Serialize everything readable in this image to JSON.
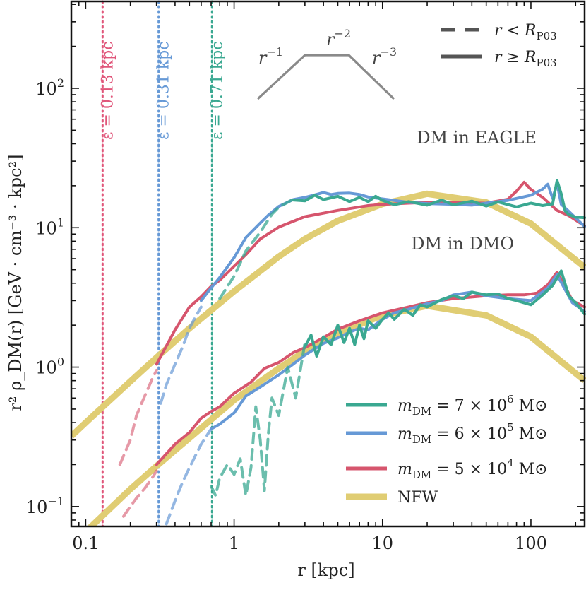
{
  "chart_data": {
    "type": "line",
    "title": "",
    "xlabel": "r [kpc]",
    "ylabel": "r² ρ_DM(r) [GeV · cm⁻³ · kpc²]",
    "xscale": "log",
    "yscale": "log",
    "xlim": [
      0.08,
      230
    ],
    "ylim": [
      0.072,
      420
    ],
    "x_ticks": [
      {
        "value": 0.1,
        "label": "0.1"
      },
      {
        "value": 1,
        "label": "1"
      },
      {
        "value": 10,
        "label": "10"
      },
      {
        "value": 100,
        "label": "100"
      }
    ],
    "y_ticks": [
      {
        "value": 0.1,
        "base": "10",
        "exp": "−1"
      },
      {
        "value": 1,
        "base": "10",
        "exp": "0"
      },
      {
        "value": 10,
        "base": "10",
        "exp": "1"
      },
      {
        "value": 100,
        "base": "10",
        "exp": "2"
      }
    ],
    "softening_lines": [
      {
        "label": "ε = 0.13 kpc",
        "x": 0.13,
        "color": "#e0567a"
      },
      {
        "label": "ε = 0.31 kpc",
        "x": 0.31,
        "color": "#6699d6"
      },
      {
        "label": "ε = 0.71 kpc",
        "x": 0.71,
        "color": "#3aa891"
      }
    ],
    "group_labels": [
      {
        "text": "DM in EAGLE",
        "position": "upper-right"
      },
      {
        "text": "DM in DMO",
        "position": "middle-right"
      }
    ],
    "slope_schematic": {
      "labels": [
        {
          "base": "r",
          "exp": "−1"
        },
        {
          "base": "r",
          "exp": "−2"
        },
        {
          "base": "r",
          "exp": "−3"
        }
      ],
      "color": "#8a8a8a"
    },
    "linestyle_legend": {
      "items": [
        {
          "label": "r < R_P03",
          "base": "r < R",
          "sub": "P03",
          "style": "dashed"
        },
        {
          "label": "r ≥ R_P03",
          "base": "r ≥ R",
          "sub": "P03",
          "style": "solid"
        }
      ],
      "color": "#555555"
    },
    "legend": [
      {
        "label": "m_DM = 7 × 10⁶ M⊙",
        "lhs": "m",
        "sub": "DM",
        "mant": " = 7 × 10",
        "exp": "6",
        "unit": " M⊙",
        "color": "#3aa891"
      },
      {
        "label": "m_DM = 6 × 10⁵ M⊙",
        "lhs": "m",
        "sub": "DM",
        "mant": " = 6 × 10",
        "exp": "5",
        "unit": " M⊙",
        "color": "#6699d6"
      },
      {
        "label": "m_DM = 5 × 10⁴ M⊙",
        "lhs": "m",
        "sub": "DM",
        "mant": " = 5 × 10",
        "exp": "4",
        "unit": " M⊙",
        "color": "#d6556d"
      },
      {
        "label": "NFW",
        "color": "#e0cd73"
      }
    ],
    "series": [
      {
        "name": "NFW (EAGLE)",
        "color": "#e0cd73",
        "style": "solid",
        "width": 9,
        "x": [
          0.08,
          0.1,
          0.2,
          0.3,
          0.5,
          1,
          2,
          3,
          5,
          10,
          20,
          50,
          100,
          230
        ],
        "y": [
          0.32,
          0.4,
          0.79,
          1.17,
          1.9,
          3.5,
          6.2,
          8.3,
          11.2,
          14.8,
          17.5,
          15.2,
          10.7,
          5.2
        ]
      },
      {
        "name": "NFW (DMO)",
        "color": "#e0cd73",
        "style": "solid",
        "width": 9,
        "x": [
          0.1,
          0.2,
          0.3,
          0.5,
          1,
          2,
          3,
          5,
          10,
          20,
          50,
          100,
          230
        ],
        "y": [
          0.066,
          0.133,
          0.195,
          0.31,
          0.58,
          0.98,
          1.3,
          1.75,
          2.35,
          2.75,
          2.35,
          1.65,
          0.8
        ]
      },
      {
        "name": "EAGLE m5e4 (r<R)",
        "color": "#d6556d",
        "style": "dashed",
        "opacity": 0.6,
        "x": [
          0.17,
          0.2,
          0.22,
          0.25,
          0.28,
          0.3
        ],
        "y": [
          0.2,
          0.3,
          0.45,
          0.62,
          0.82,
          0.95
        ]
      },
      {
        "name": "EAGLE m5e4",
        "color": "#d6556d",
        "style": "solid",
        "x": [
          0.3,
          0.4,
          0.5,
          0.6,
          0.7,
          0.8,
          1,
          1.2,
          1.5,
          2,
          3,
          5,
          8,
          10,
          15,
          20,
          30,
          50,
          70,
          80,
          90,
          100,
          120,
          150,
          180,
          230
        ],
        "y": [
          1.05,
          1.85,
          2.7,
          3.2,
          3.8,
          4.2,
          5.3,
          6.4,
          8.3,
          10.1,
          12.0,
          13.3,
          14.4,
          14.7,
          15.0,
          15.2,
          15.1,
          15.0,
          16.0,
          18.3,
          21.2,
          18.8,
          16.5,
          13.3,
          12.2,
          10.3
        ]
      },
      {
        "name": "EAGLE m6e5 (r<R)",
        "color": "#6699d6",
        "style": "dashed",
        "opacity": 0.7,
        "x": [
          0.32,
          0.35,
          0.4,
          0.45,
          0.5,
          0.55,
          0.6
        ],
        "y": [
          0.55,
          0.75,
          1.05,
          1.4,
          1.9,
          2.3,
          2.7
        ]
      },
      {
        "name": "EAGLE m6e5",
        "color": "#6699d6",
        "style": "solid",
        "x": [
          0.6,
          0.7,
          0.8,
          1,
          1.2,
          1.5,
          1.7,
          2,
          2.5,
          3,
          3.5,
          4,
          4.5,
          5,
          6,
          7,
          8,
          10,
          15,
          20,
          30,
          40,
          50,
          70,
          100,
          120,
          130,
          140,
          150,
          160,
          180,
          230
        ],
        "y": [
          3.0,
          3.7,
          4.4,
          6.1,
          8.5,
          10.8,
          12.3,
          14.2,
          15.9,
          16.5,
          17.2,
          17.9,
          17.3,
          17.6,
          17.7,
          17.3,
          16.6,
          16.1,
          15.2,
          14.9,
          14.7,
          14.5,
          15.0,
          15.7,
          17.1,
          18.9,
          20.5,
          16.2,
          20.8,
          14.7,
          13.1,
          10.2
        ]
      },
      {
        "name": "EAGLE m7e6 (r<R)",
        "color": "#3aa891",
        "style": "dashed",
        "opacity": 0.75,
        "x": [
          0.8,
          1,
          1.2,
          1.5,
          1.8,
          2,
          2.5
        ],
        "y": [
          3.1,
          4.5,
          6.8,
          9.3,
          12.5,
          14.0,
          16.0
        ]
      },
      {
        "name": "EAGLE m7e6",
        "color": "#3aa891",
        "style": "solid",
        "x": [
          2.5,
          3,
          3.5,
          4,
          5,
          6,
          7,
          8,
          9,
          10,
          12,
          15,
          20,
          25,
          30,
          40,
          50,
          60,
          80,
          100,
          120,
          140,
          150,
          160,
          170,
          180,
          200,
          230
        ],
        "y": [
          15.8,
          15.6,
          17.1,
          15.9,
          16.8,
          15.4,
          16.5,
          15.4,
          16.8,
          15.7,
          14.6,
          15.4,
          14.5,
          15.8,
          14.6,
          15.5,
          14.3,
          15.3,
          14.1,
          15.0,
          14.4,
          14.8,
          21.8,
          17.5,
          13.2,
          12.4,
          11.9,
          11.8
        ]
      },
      {
        "name": "DMO m5e4 (r<R)",
        "color": "#d6556d",
        "style": "dashed",
        "opacity": 0.6,
        "x": [
          0.18,
          0.2,
          0.22,
          0.25,
          0.28,
          0.3
        ],
        "y": [
          0.085,
          0.1,
          0.115,
          0.135,
          0.16,
          0.18
        ]
      },
      {
        "name": "DMO m5e4",
        "color": "#d6556d",
        "style": "solid",
        "x": [
          0.3,
          0.4,
          0.5,
          0.6,
          0.7,
          0.8,
          1,
          1.3,
          1.6,
          2,
          2.5,
          3,
          4,
          5,
          7,
          10,
          15,
          20,
          30,
          50,
          70,
          90,
          110,
          130,
          150,
          170,
          190,
          230
        ],
        "y": [
          0.2,
          0.28,
          0.34,
          0.43,
          0.48,
          0.52,
          0.65,
          0.78,
          0.98,
          1.08,
          1.27,
          1.38,
          1.63,
          1.87,
          2.15,
          2.45,
          2.7,
          2.9,
          3.1,
          3.25,
          3.3,
          3.3,
          3.4,
          3.9,
          4.8,
          3.8,
          3.0,
          2.7
        ]
      },
      {
        "name": "DMO m6e5 (r<R)",
        "color": "#6699d6",
        "style": "dashed",
        "opacity": 0.7,
        "x": [
          0.35,
          0.4,
          0.45,
          0.5,
          0.6,
          0.7
        ],
        "y": [
          0.075,
          0.11,
          0.15,
          0.19,
          0.28,
          0.36
        ]
      },
      {
        "name": "DMO m6e5",
        "color": "#6699d6",
        "style": "solid",
        "x": [
          0.7,
          0.8,
          1,
          1.2,
          1.5,
          2,
          2.5,
          3,
          4,
          5,
          6,
          7,
          8,
          10,
          12,
          15,
          20,
          25,
          30,
          40,
          50,
          70,
          100,
          130,
          150,
          170,
          190,
          230
        ],
        "y": [
          0.36,
          0.39,
          0.47,
          0.62,
          0.72,
          0.88,
          1.05,
          1.22,
          1.48,
          1.62,
          1.78,
          1.9,
          1.85,
          2.2,
          2.45,
          2.6,
          2.85,
          3.0,
          3.3,
          3.45,
          3.25,
          3.1,
          3.0,
          3.7,
          4.6,
          3.6,
          2.9,
          2.5
        ]
      },
      {
        "name": "DMO m7e6 (r<R)",
        "color": "#3aa891",
        "style": "dashed",
        "opacity": 0.75,
        "x": [
          0.7,
          0.75,
          0.8,
          0.9,
          1.0,
          1.1,
          1.2,
          1.3,
          1.4,
          1.5,
          1.6,
          1.7,
          1.8,
          2,
          2.3,
          2.6,
          3
        ],
        "y": [
          0.14,
          0.12,
          0.16,
          0.2,
          0.17,
          0.22,
          0.12,
          0.19,
          0.52,
          0.3,
          0.13,
          0.33,
          0.6,
          0.45,
          1.0,
          0.6,
          1.5
        ]
      },
      {
        "name": "DMO m7e6",
        "color": "#3aa891",
        "style": "solid",
        "x": [
          3,
          3.3,
          3.6,
          4,
          4.5,
          5,
          5.5,
          6,
          6.5,
          7,
          7.5,
          8,
          9,
          10,
          11,
          12,
          14,
          16,
          18,
          20,
          25,
          30,
          35,
          40,
          50,
          60,
          70,
          80,
          100,
          120,
          140,
          160,
          180,
          200,
          230
        ],
        "y": [
          1.4,
          1.7,
          1.2,
          1.65,
          1.45,
          2.0,
          1.5,
          1.9,
          1.45,
          2.0,
          1.6,
          2.15,
          1.9,
          2.2,
          2.45,
          2.2,
          2.6,
          2.35,
          2.8,
          2.7,
          3.05,
          3.25,
          3.1,
          3.45,
          3.3,
          3.35,
          3.1,
          3.0,
          2.8,
          3.3,
          3.85,
          4.9,
          3.25,
          2.9,
          2.4
        ]
      }
    ]
  }
}
